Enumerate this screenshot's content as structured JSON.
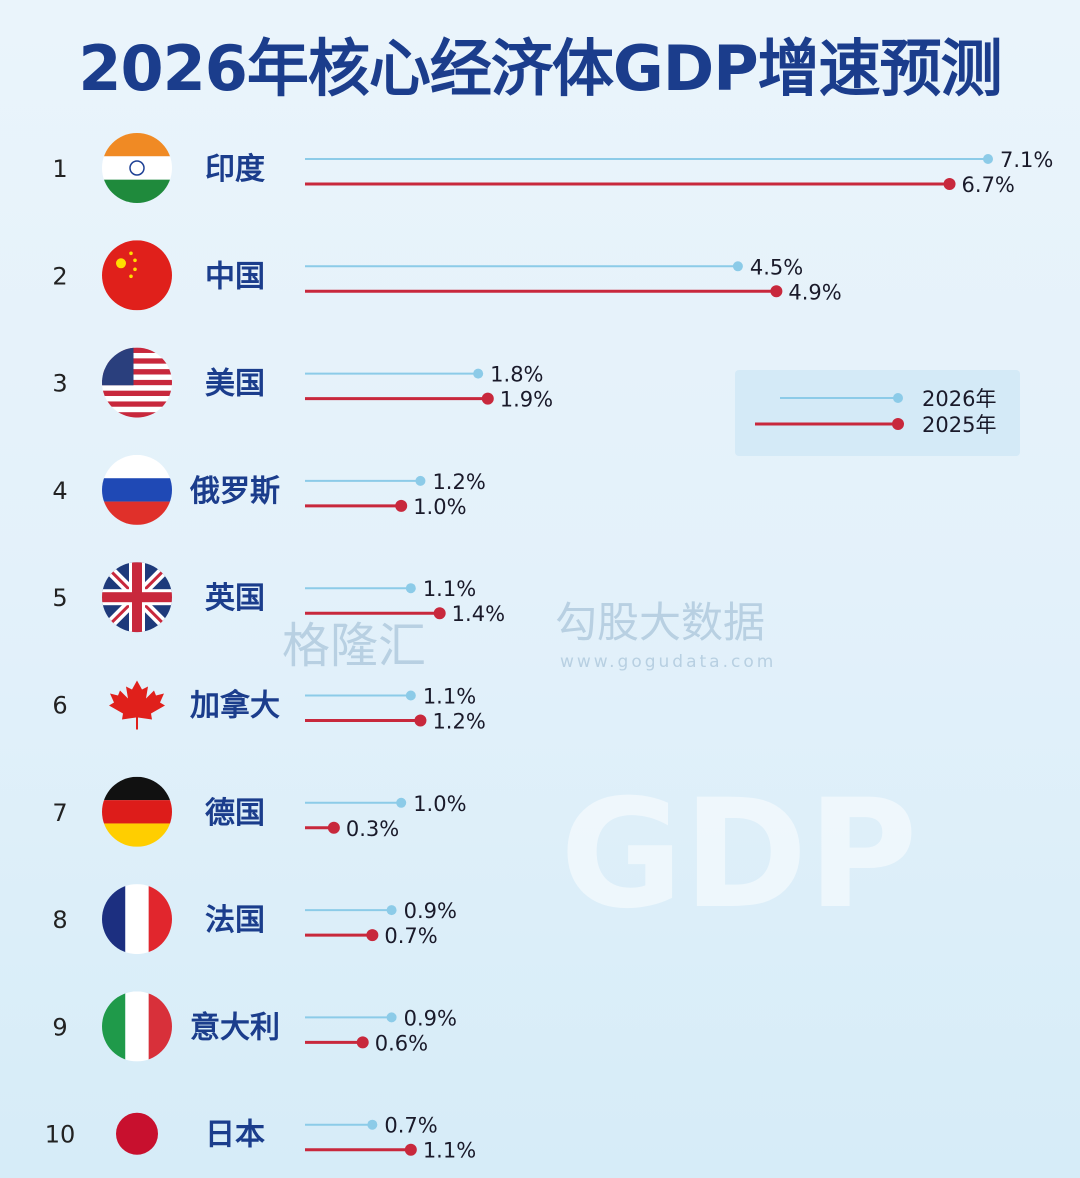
{
  "title": "2026年核心经济体GDP增速预测",
  "watermarks": {
    "left": "格隆汇",
    "right": "勾股大数据",
    "url": "www.gogudata.com",
    "background": "GDP"
  },
  "colors": {
    "2026": "#8ccbe8",
    "2025": "#c8283c",
    "title": "#1b3d8c"
  },
  "chart_data": {
    "type": "bar",
    "title": "2026年核心经济体GDP增速预测",
    "orientation": "horizontal",
    "unit": "%",
    "legend": {
      "placement": "right",
      "entries": [
        "2026年",
        "2025年"
      ]
    },
    "categories": [
      "印度",
      "中国",
      "美国",
      "俄罗斯",
      "英国",
      "加拿大",
      "德国",
      "法国",
      "意大利",
      "日本"
    ],
    "ranks": [
      "1",
      "2",
      "3",
      "4",
      "5",
      "6",
      "7",
      "8",
      "9",
      "10"
    ],
    "flags": [
      "india",
      "china",
      "usa",
      "russia",
      "uk",
      "canada",
      "germany",
      "france",
      "italy",
      "japan"
    ],
    "series": [
      {
        "name": "2026年",
        "values": [
          7.1,
          4.5,
          1.8,
          1.2,
          1.1,
          1.1,
          1.0,
          0.9,
          0.9,
          0.7
        ],
        "labels": [
          "7.1%",
          "4.5%",
          "1.8%",
          "1.2%",
          "1.1%",
          "1.1%",
          "1.0%",
          "0.9%",
          "0.9%",
          "0.7%"
        ]
      },
      {
        "name": "2025年",
        "values": [
          6.7,
          4.9,
          1.9,
          1.0,
          1.4,
          1.2,
          0.3,
          0.7,
          0.6,
          1.1
        ],
        "labels": [
          "6.7%",
          "4.9%",
          "1.9%",
          "1.0%",
          "1.4%",
          "1.2%",
          "0.3%",
          "0.7%",
          "0.6%",
          "1.1%"
        ]
      }
    ]
  }
}
